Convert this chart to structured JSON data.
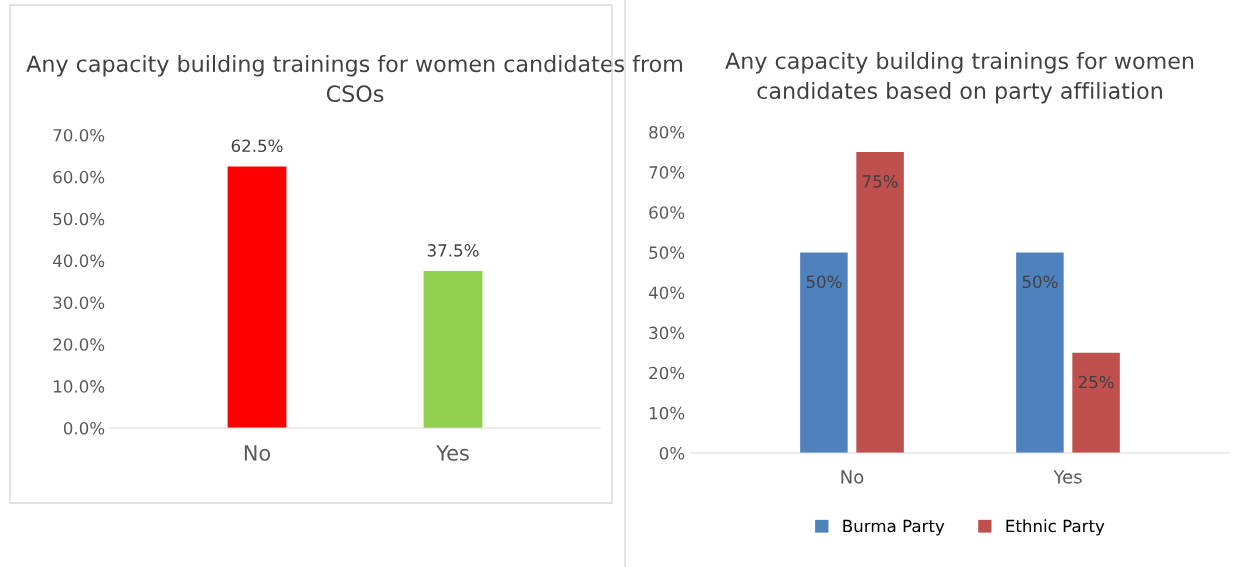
{
  "chart_data": [
    {
      "type": "bar",
      "title": "Any capacity building trainings for women candidates from CSOs",
      "categories": [
        "No",
        "Yes"
      ],
      "values": [
        62.5,
        37.5
      ],
      "colors": [
        "#ff0000",
        "#92d050"
      ],
      "value_labels": [
        "62.5%",
        "37.5%"
      ],
      "ylim": [
        0,
        70
      ],
      "yticks": [
        {
          "value": 0,
          "label": "0.0%"
        },
        {
          "value": 10,
          "label": "10.0%"
        },
        {
          "value": 20,
          "label": "20.0%"
        },
        {
          "value": 30,
          "label": "30.0%"
        },
        {
          "value": 40,
          "label": "40.0%"
        },
        {
          "value": 50,
          "label": "50.0%"
        },
        {
          "value": 60,
          "label": "60.0%"
        },
        {
          "value": 70,
          "label": "70.0%"
        }
      ],
      "grid": false,
      "legend": false
    },
    {
      "type": "bar",
      "title": "Any capacity building trainings for women candidates based on party affiliation",
      "categories": [
        "No",
        "Yes"
      ],
      "series": [
        {
          "name": "Burma Party",
          "color": "#4f81bd",
          "values": [
            50,
            50
          ],
          "value_labels": [
            "50%",
            "50%"
          ]
        },
        {
          "name": "Ethnic Party",
          "color": "#c0504d",
          "values": [
            75,
            25
          ],
          "value_labels": [
            "75%",
            "25%"
          ]
        }
      ],
      "ylim": [
        0,
        80
      ],
      "yticks": [
        {
          "value": 0,
          "label": "0%"
        },
        {
          "value": 10,
          "label": "10%"
        },
        {
          "value": 20,
          "label": "20%"
        },
        {
          "value": 30,
          "label": "30%"
        },
        {
          "value": 40,
          "label": "40%"
        },
        {
          "value": 50,
          "label": "50%"
        },
        {
          "value": 60,
          "label": "60%"
        },
        {
          "value": 70,
          "label": "70%"
        },
        {
          "value": 80,
          "label": "80%"
        }
      ],
      "grid": false,
      "legend": "bottom"
    }
  ]
}
